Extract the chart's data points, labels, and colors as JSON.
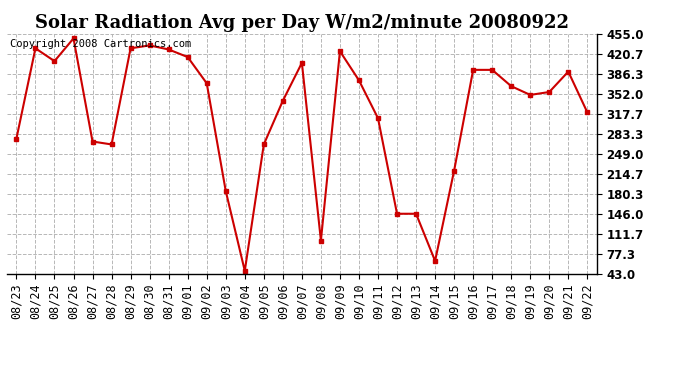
{
  "title": "Solar Radiation Avg per Day W/m2/minute 20080922",
  "copyright": "Copyright 2008 Cartronics.com",
  "labels": [
    "08/23",
    "08/24",
    "08/25",
    "08/26",
    "08/27",
    "08/28",
    "08/29",
    "08/30",
    "08/31",
    "09/01",
    "09/02",
    "09/03",
    "09/04",
    "09/05",
    "09/06",
    "09/07",
    "09/08",
    "09/09",
    "09/10",
    "09/11",
    "09/12",
    "09/13",
    "09/14",
    "09/15",
    "09/16",
    "09/17",
    "09/18",
    "09/19",
    "09/20",
    "09/21",
    "09/22"
  ],
  "values": [
    275,
    430,
    408,
    447,
    270,
    265,
    430,
    435,
    428,
    415,
    370,
    185,
    48,
    265,
    340,
    405,
    100,
    425,
    375,
    310,
    146,
    146,
    65,
    220,
    393,
    393,
    365,
    350,
    355,
    390,
    320
  ],
  "line_color": "#cc0000",
  "marker_color": "#cc0000",
  "bg_color": "#ffffff",
  "grid_color": "#b0b0b0",
  "ylim": [
    43.0,
    455.0
  ],
  "yticks": [
    43.0,
    77.3,
    111.7,
    146.0,
    180.3,
    214.7,
    249.0,
    283.3,
    317.7,
    352.0,
    386.3,
    420.7,
    455.0
  ],
  "title_fontsize": 13,
  "tick_fontsize": 8.5,
  "copyright_fontsize": 7.5
}
